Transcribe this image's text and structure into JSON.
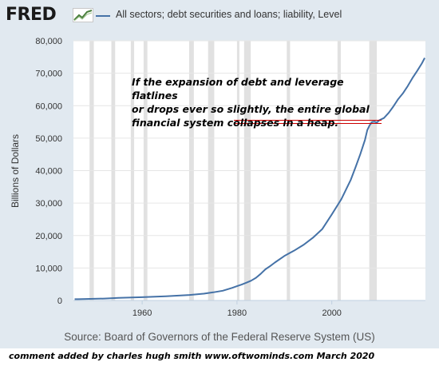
{
  "header": {
    "logo_text": "FRED",
    "logo_icon": "line-graph-icon",
    "series_label": "All sectors; debt securities and loans; liability, Level"
  },
  "annotation": {
    "lines": [
      "If the expansion of debt and leverage flatlines",
      "or drops ever so slightly, the entire global",
      "financial system collapses in a heap."
    ],
    "marker_color": "#cc0000"
  },
  "source": "Source: Board of Governors of the Federal Reserve System (US)",
  "credit": "comment added by charles hugh smith   www.oftwominds.com   March 2020",
  "colors": {
    "series": "#4572a7",
    "recession": "#e1e1e1",
    "panel": "#e1e9f0"
  },
  "chart_data": {
    "type": "line",
    "ylabel": "Billions of Dollars",
    "ylim": [
      0,
      80000
    ],
    "xlim": [
      1945.5,
      2019.75
    ],
    "y_ticks": [
      "0",
      "10,000",
      "20,000",
      "30,000",
      "40,000",
      "50,000",
      "60,000",
      "70,000",
      "80,000"
    ],
    "y_tick_values": [
      0,
      10000,
      20000,
      30000,
      40000,
      50000,
      60000,
      70000,
      80000
    ],
    "x_ticks": [
      "1960",
      "1980",
      "2000"
    ],
    "x_tick_values": [
      1960,
      1980,
      2000
    ],
    "grid": "horizontal",
    "recessions": [
      [
        1948.9,
        1949.8
      ],
      [
        1953.5,
        1954.3
      ],
      [
        1957.6,
        1958.3
      ],
      [
        1960.3,
        1961.1
      ],
      [
        1969.9,
        1970.9
      ],
      [
        1973.9,
        1975.2
      ],
      [
        1980.0,
        1980.5
      ],
      [
        1981.5,
        1982.9
      ],
      [
        1990.5,
        1991.2
      ],
      [
        2001.2,
        2001.9
      ],
      [
        2007.9,
        2009.5
      ]
    ],
    "series": [
      {
        "name": "All sectors; debt securities and loans; liability, Level",
        "x": [
          1945.75,
          1946.5,
          1952.0,
          1955,
          1960,
          1965,
          1970,
          1973,
          1975,
          1977,
          1979,
          1980,
          1981,
          1982,
          1983,
          1984,
          1985,
          1986,
          1987,
          1988,
          1990,
          1992,
          1994,
          1996,
          1998,
          2000,
          2002,
          2004,
          2005,
          2006,
          2007,
          2007.5,
          2008,
          2008.5,
          2009,
          2009.5,
          2010,
          2011,
          2012,
          2013,
          2014,
          2015,
          2016,
          2017,
          2018,
          2019,
          2019.6
        ],
        "y": [
          400,
          400,
          600,
          800,
          1000,
          1300,
          1700,
          2100,
          2500,
          3000,
          3900,
          4400,
          4900,
          5500,
          6100,
          7000,
          8200,
          9600,
          10600,
          11700,
          13700,
          15300,
          17100,
          19300,
          22000,
          26500,
          31200,
          37200,
          41000,
          45000,
          49500,
          52500,
          54000,
          55000,
          55100,
          54800,
          55500,
          56200,
          57800,
          59800,
          62000,
          63800,
          66000,
          68500,
          70700,
          73000,
          74700
        ]
      }
    ]
  }
}
